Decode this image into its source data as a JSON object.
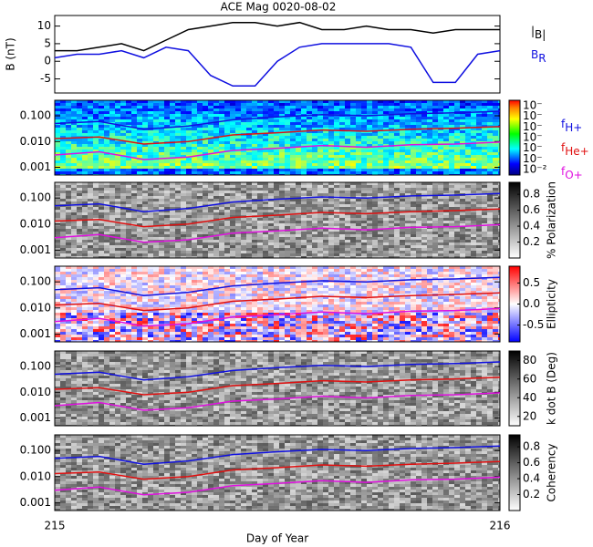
{
  "chart_data": [
    {
      "type": "line",
      "title": "ACE Mag 0020-08-02",
      "ylabel": "B (nT)",
      "x": [
        215,
        215.05,
        215.1,
        215.15,
        215.2,
        215.25,
        215.3,
        215.35,
        215.4,
        215.45,
        215.5,
        215.55,
        215.6,
        215.65,
        215.7,
        215.75,
        215.8,
        215.85,
        215.9,
        215.95,
        216
      ],
      "xlim": [
        215,
        216
      ],
      "ylim": [
        -9,
        13
      ],
      "yticks": [
        -5,
        0,
        5,
        10
      ],
      "series": [
        {
          "name": "|B|",
          "color": "#000000",
          "values": [
            3,
            3,
            4,
            5,
            3,
            6,
            9,
            10,
            11,
            11,
            10,
            11,
            9,
            9,
            10,
            9,
            9,
            8,
            9,
            9,
            9
          ]
        },
        {
          "name": "BR",
          "color": "#1010e0",
          "values": [
            1,
            2,
            2,
            3,
            1,
            4,
            3,
            -4,
            -7,
            -7,
            0,
            4,
            5,
            5,
            5,
            5,
            4,
            -6,
            -6,
            2,
            3
          ]
        }
      ]
    },
    {
      "type": "spectrogram",
      "colormap": "rainbow",
      "colorbar_labels": [
        "10⁻²",
        "10⁻",
        "10⁻",
        "10⁻",
        "10⁻",
        "10⁻",
        "10⁻"
      ],
      "x": [
        215,
        215.1,
        215.2,
        215.3,
        215.4,
        215.5,
        215.6,
        215.7,
        215.8,
        215.9,
        216
      ],
      "xlim": [
        215,
        216
      ],
      "ylim": [
        0.0005,
        0.4
      ],
      "log_y": true,
      "yticks": [
        {
          "value": 0.001,
          "label": "0.001"
        },
        {
          "value": 0.01,
          "label": "0.010"
        },
        {
          "value": 0.1,
          "label": "0.100"
        }
      ],
      "series": [
        {
          "name": "fH+",
          "color": "#1010e0",
          "values": [
            0.05,
            0.06,
            0.03,
            0.04,
            0.07,
            0.09,
            0.11,
            0.1,
            0.12,
            0.13,
            0.15
          ]
        },
        {
          "name": "fHe+",
          "color": "#e01010",
          "values": [
            0.013,
            0.015,
            0.008,
            0.01,
            0.018,
            0.022,
            0.028,
            0.025,
            0.03,
            0.033,
            0.038
          ]
        },
        {
          "name": "fO+",
          "color": "#e010e0",
          "values": [
            0.003,
            0.004,
            0.002,
            0.0025,
            0.0045,
            0.0055,
            0.007,
            0.006,
            0.0075,
            0.008,
            0.0095
          ]
        }
      ]
    },
    {
      "type": "spectrogram",
      "colormap": "gray",
      "colorbar_title": "% Polarization",
      "clim": [
        0,
        0.95
      ],
      "cticks": [
        0.2,
        0.4,
        0.6,
        0.8
      ],
      "x": [
        215,
        215.1,
        215.2,
        215.3,
        215.4,
        215.5,
        215.6,
        215.7,
        215.8,
        215.9,
        216
      ],
      "xlim": [
        215,
        216
      ],
      "ylim": [
        0.0005,
        0.4
      ],
      "log_y": true,
      "yticks": [
        {
          "value": 0.001,
          "label": "0.001"
        },
        {
          "value": 0.01,
          "label": "0.010"
        },
        {
          "value": 0.1,
          "label": "0.100"
        }
      ],
      "series": [
        {
          "color": "#1010e0",
          "values": [
            0.05,
            0.06,
            0.03,
            0.04,
            0.07,
            0.09,
            0.11,
            0.1,
            0.12,
            0.13,
            0.15
          ]
        },
        {
          "color": "#e01010",
          "values": [
            0.013,
            0.015,
            0.008,
            0.01,
            0.018,
            0.022,
            0.028,
            0.025,
            0.03,
            0.033,
            0.038
          ]
        },
        {
          "color": "#e010e0",
          "values": [
            0.003,
            0.004,
            0.002,
            0.0025,
            0.0045,
            0.0055,
            0.007,
            0.006,
            0.0075,
            0.008,
            0.0095
          ]
        }
      ]
    },
    {
      "type": "spectrogram",
      "colormap": "bwr",
      "colorbar_title": "Ellipticity",
      "clim": [
        -0.9,
        0.9
      ],
      "cticks": [
        -0.5,
        {
          "value": 0,
          "label": "0.0"
        },
        0.5
      ],
      "x": [
        215,
        215.1,
        215.2,
        215.3,
        215.4,
        215.5,
        215.6,
        215.7,
        215.8,
        215.9,
        216
      ],
      "xlim": [
        215,
        216
      ],
      "ylim": [
        0.0005,
        0.4
      ],
      "log_y": true,
      "yticks": [
        {
          "value": 0.001,
          "label": "0.001"
        },
        {
          "value": 0.01,
          "label": "0.010"
        },
        {
          "value": 0.1,
          "label": "0.100"
        }
      ],
      "series": [
        {
          "color": "#1010e0",
          "values": [
            0.05,
            0.06,
            0.03,
            0.04,
            0.07,
            0.09,
            0.11,
            0.1,
            0.12,
            0.13,
            0.15
          ]
        },
        {
          "color": "#e01010",
          "values": [
            0.013,
            0.015,
            0.008,
            0.01,
            0.018,
            0.022,
            0.028,
            0.025,
            0.03,
            0.033,
            0.038
          ]
        },
        {
          "color": "#e010e0",
          "values": [
            0.003,
            0.004,
            0.002,
            0.0025,
            0.0045,
            0.0055,
            0.007,
            0.006,
            0.0075,
            0.008,
            0.0095
          ]
        }
      ]
    },
    {
      "type": "spectrogram",
      "colormap": "gray",
      "colorbar_title": "k dot B (Deg)",
      "clim": [
        10,
        90
      ],
      "cticks": [
        20,
        40,
        60,
        80
      ],
      "x": [
        215,
        215.1,
        215.2,
        215.3,
        215.4,
        215.5,
        215.6,
        215.7,
        215.8,
        215.9,
        216
      ],
      "xlim": [
        215,
        216
      ],
      "ylim": [
        0.0005,
        0.4
      ],
      "log_y": true,
      "yticks": [
        {
          "value": 0.001,
          "label": "0.001"
        },
        {
          "value": 0.01,
          "label": "0.010"
        },
        {
          "value": 0.1,
          "label": "0.100"
        }
      ],
      "series": [
        {
          "color": "#1010e0",
          "values": [
            0.05,
            0.06,
            0.03,
            0.04,
            0.07,
            0.09,
            0.11,
            0.1,
            0.12,
            0.13,
            0.15
          ]
        },
        {
          "color": "#e01010",
          "values": [
            0.013,
            0.015,
            0.008,
            0.01,
            0.018,
            0.022,
            0.028,
            0.025,
            0.03,
            0.033,
            0.038
          ]
        },
        {
          "color": "#e010e0",
          "values": [
            0.003,
            0.004,
            0.002,
            0.0025,
            0.0045,
            0.0055,
            0.007,
            0.006,
            0.0075,
            0.008,
            0.0095
          ]
        }
      ]
    },
    {
      "type": "spectrogram",
      "colormap": "gray",
      "colorbar_title": "Coherency",
      "clim": [
        0,
        0.95
      ],
      "cticks": [
        0.2,
        0.4,
        0.6,
        0.8
      ],
      "x": [
        215,
        215.1,
        215.2,
        215.3,
        215.4,
        215.5,
        215.6,
        215.7,
        215.8,
        215.9,
        216
      ],
      "xlim": [
        215,
        216
      ],
      "ylim": [
        0.0005,
        0.4
      ],
      "log_y": true,
      "xticks": [
        215,
        216
      ],
      "xlabel": "Day of Year",
      "yticks": [
        {
          "value": 0.001,
          "label": "0.001"
        },
        {
          "value": 0.01,
          "label": "0.010"
        },
        {
          "value": 0.1,
          "label": "0.100"
        }
      ],
      "series": [
        {
          "color": "#1010e0",
          "values": [
            0.05,
            0.06,
            0.03,
            0.04,
            0.07,
            0.09,
            0.11,
            0.1,
            0.12,
            0.13,
            0.15
          ]
        },
        {
          "color": "#e01010",
          "values": [
            0.013,
            0.015,
            0.008,
            0.01,
            0.018,
            0.022,
            0.028,
            0.025,
            0.03,
            0.033,
            0.038
          ]
        },
        {
          "color": "#e010e0",
          "values": [
            0.003,
            0.004,
            0.002,
            0.0025,
            0.0045,
            0.0055,
            0.007,
            0.006,
            0.0075,
            0.008,
            0.0095
          ]
        }
      ]
    }
  ]
}
